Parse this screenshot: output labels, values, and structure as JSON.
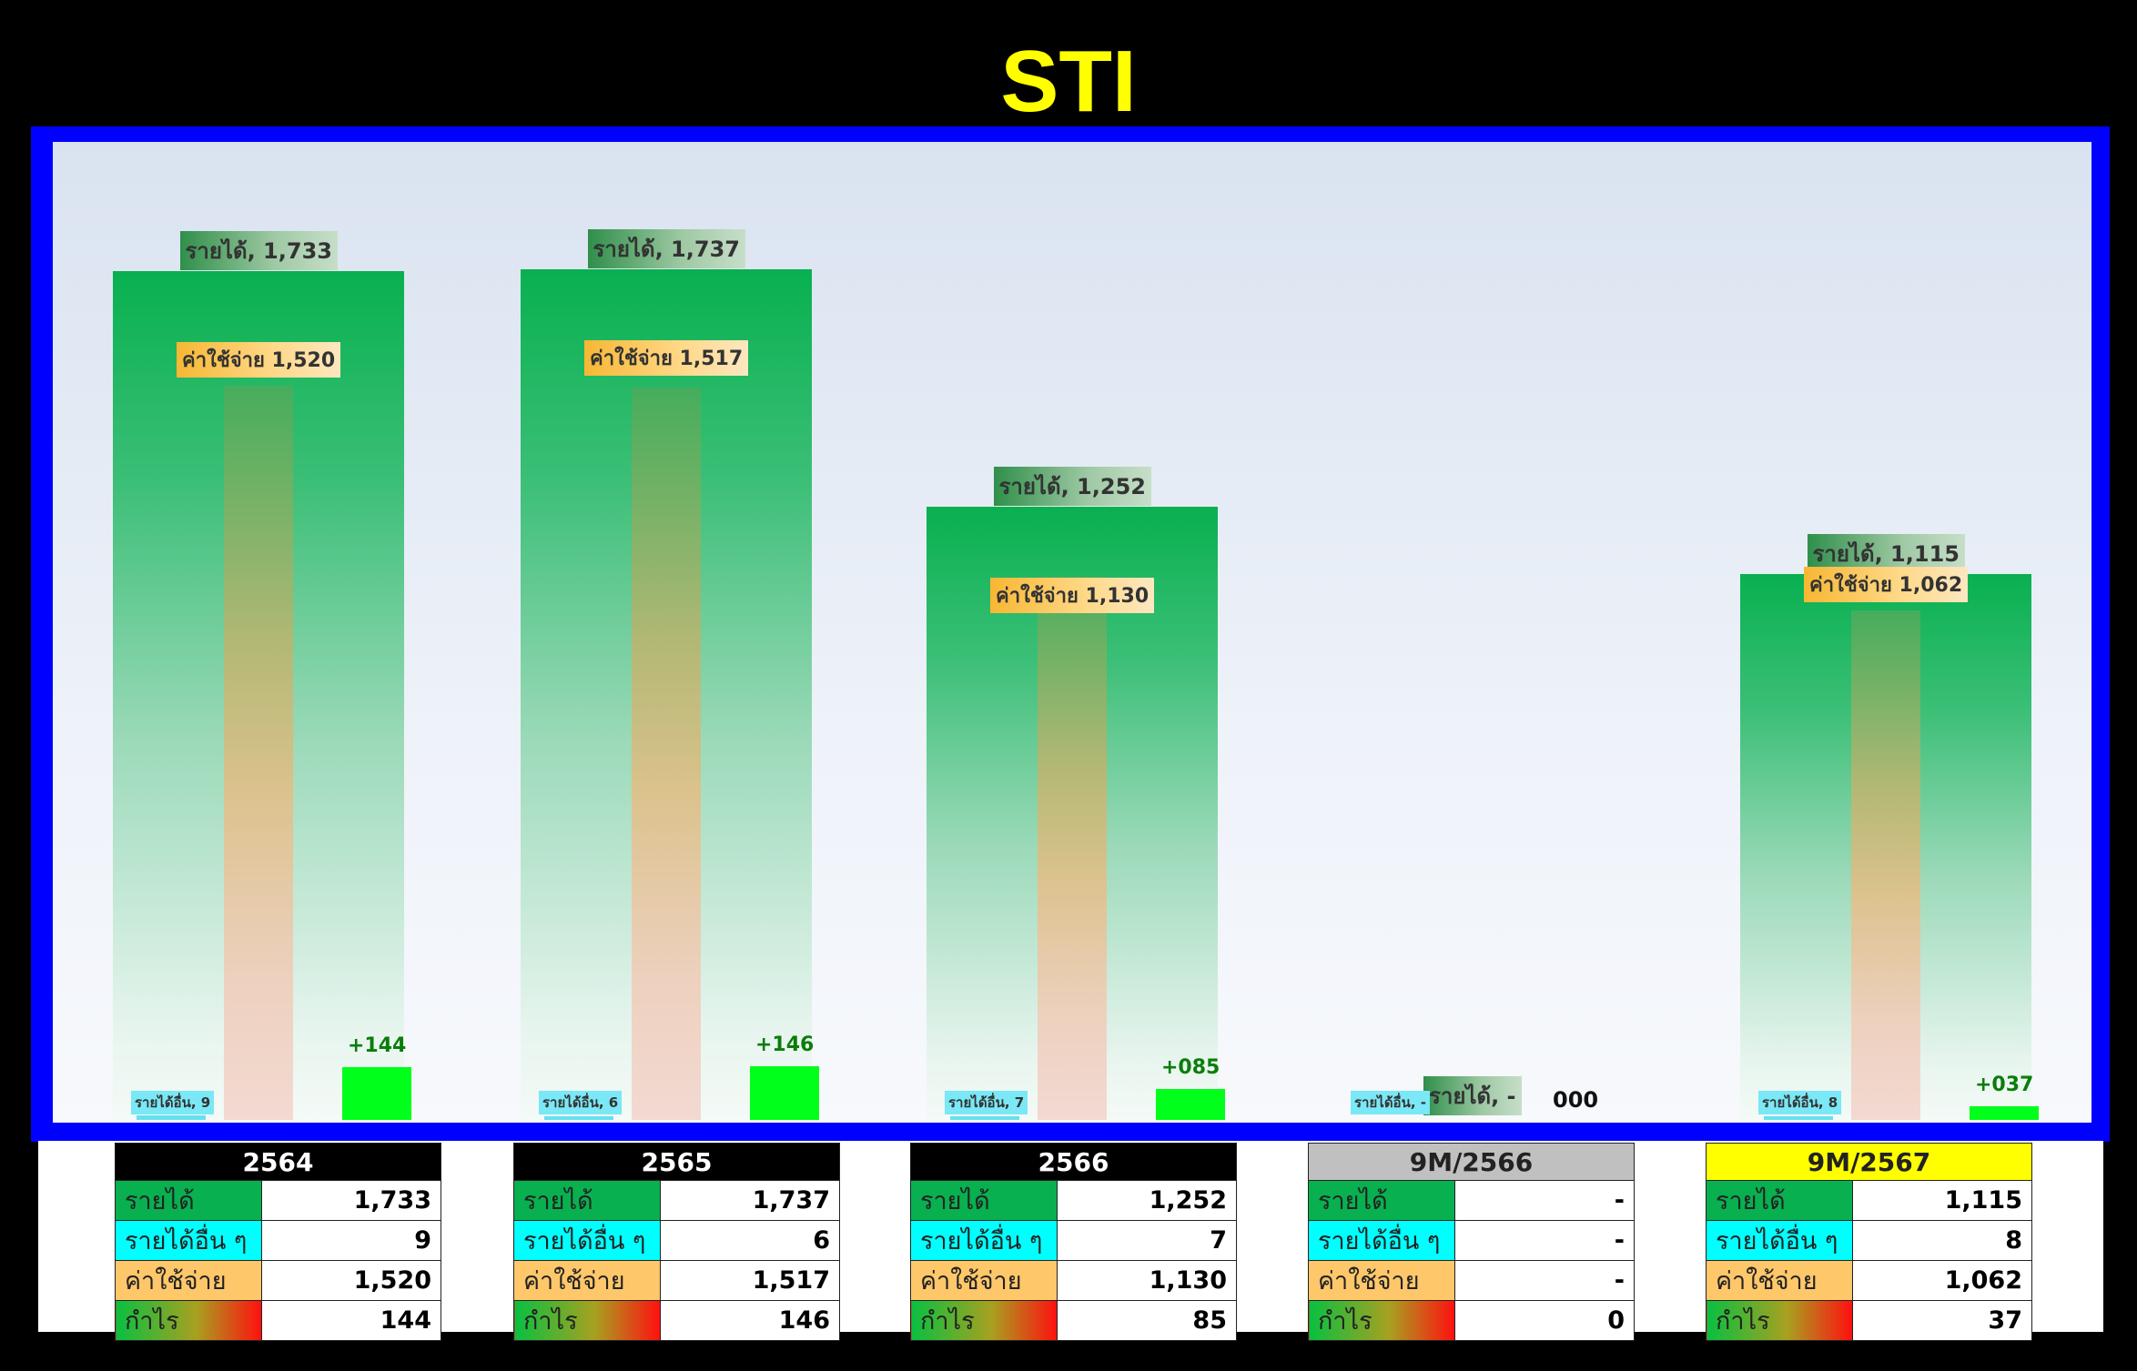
{
  "title": "STI",
  "chart_data": {
    "type": "bar",
    "title": "STI",
    "categories": [
      "2564",
      "2565",
      "2566",
      "9M/2566",
      "9M/2567"
    ],
    "series": [
      {
        "name": "รายได้",
        "values": [
          1733,
          1737,
          1252,
          0,
          1115
        ]
      },
      {
        "name": "รายได้อื่นๆ",
        "values": [
          9,
          6,
          7,
          0,
          8
        ]
      },
      {
        "name": "ค่าใช้จ่าย",
        "values": [
          1520,
          1517,
          1130,
          0,
          1062
        ]
      },
      {
        "name": "กำไร",
        "values": [
          144,
          146,
          85,
          0,
          37
        ]
      }
    ],
    "labels": {
      "revenue": [
        "รายได้, 1,733",
        "รายได้, 1,737",
        "รายได้, 1,252",
        "รายได้, -",
        "รายได้, 1,115"
      ],
      "expense": [
        "ค่าใช้จ่าย 1,520",
        "ค่าใช้จ่าย 1,517",
        "ค่าใช้จ่าย 1,130",
        "",
        "ค่าใช้จ่าย 1,062"
      ],
      "other": [
        "รายได้อื่น, 9",
        "รายได้อื่น, 6",
        "รายได้อื่น, 7",
        "รายได้อื่น, -",
        "รายได้อื่น, 8"
      ],
      "profit": [
        "+144",
        "+146",
        "+085",
        "000",
        "+037"
      ]
    },
    "ylim": [
      0,
      1900
    ],
    "grid": false,
    "colors": {
      "revenue": "#08b050",
      "expense": "#fec76a",
      "other": "#00ffff",
      "profit": "#00ff1a",
      "frame": "#0000ff",
      "title": "#ffff00"
    }
  },
  "tables": [
    {
      "header": "2564",
      "header_bg": "#000000",
      "header_fg": "#ffffff",
      "rows": [
        {
          "label": "รายได้",
          "value": "1,733"
        },
        {
          "label": "รายได้อื่น ๆ",
          "value": "9"
        },
        {
          "label": "ค่าใช้จ่าย",
          "value": "1,520"
        },
        {
          "label": "กำไร",
          "value": "144"
        }
      ]
    },
    {
      "header": "2565",
      "header_bg": "#000000",
      "header_fg": "#ffffff",
      "rows": [
        {
          "label": "รายได้",
          "value": "1,737"
        },
        {
          "label": "รายได้อื่น ๆ",
          "value": "6"
        },
        {
          "label": "ค่าใช้จ่าย",
          "value": "1,517"
        },
        {
          "label": "กำไร",
          "value": "146"
        }
      ]
    },
    {
      "header": "2566",
      "header_bg": "#000000",
      "header_fg": "#ffffff",
      "rows": [
        {
          "label": "รายได้",
          "value": "1,252"
        },
        {
          "label": "รายได้อื่น ๆ",
          "value": "7"
        },
        {
          "label": "ค่าใช้จ่าย",
          "value": "1,130"
        },
        {
          "label": "กำไร",
          "value": "85"
        }
      ]
    },
    {
      "header": "9M/2566",
      "header_bg": "#c0c0c0",
      "header_fg": "#222222",
      "rows": [
        {
          "label": "รายได้",
          "value": "-"
        },
        {
          "label": "รายได้อื่น ๆ",
          "value": "-"
        },
        {
          "label": "ค่าใช้จ่าย",
          "value": "-"
        },
        {
          "label": "กำไร",
          "value": "0"
        }
      ]
    },
    {
      "header": "9M/2567",
      "header_bg": "#ffff00",
      "header_fg": "#222222",
      "rows": [
        {
          "label": "รายได้",
          "value": "1,115"
        },
        {
          "label": "รายได้อื่น ๆ",
          "value": "8"
        },
        {
          "label": "ค่าใช้จ่าย",
          "value": "1,062"
        },
        {
          "label": "กำไร",
          "value": "37"
        }
      ]
    }
  ]
}
